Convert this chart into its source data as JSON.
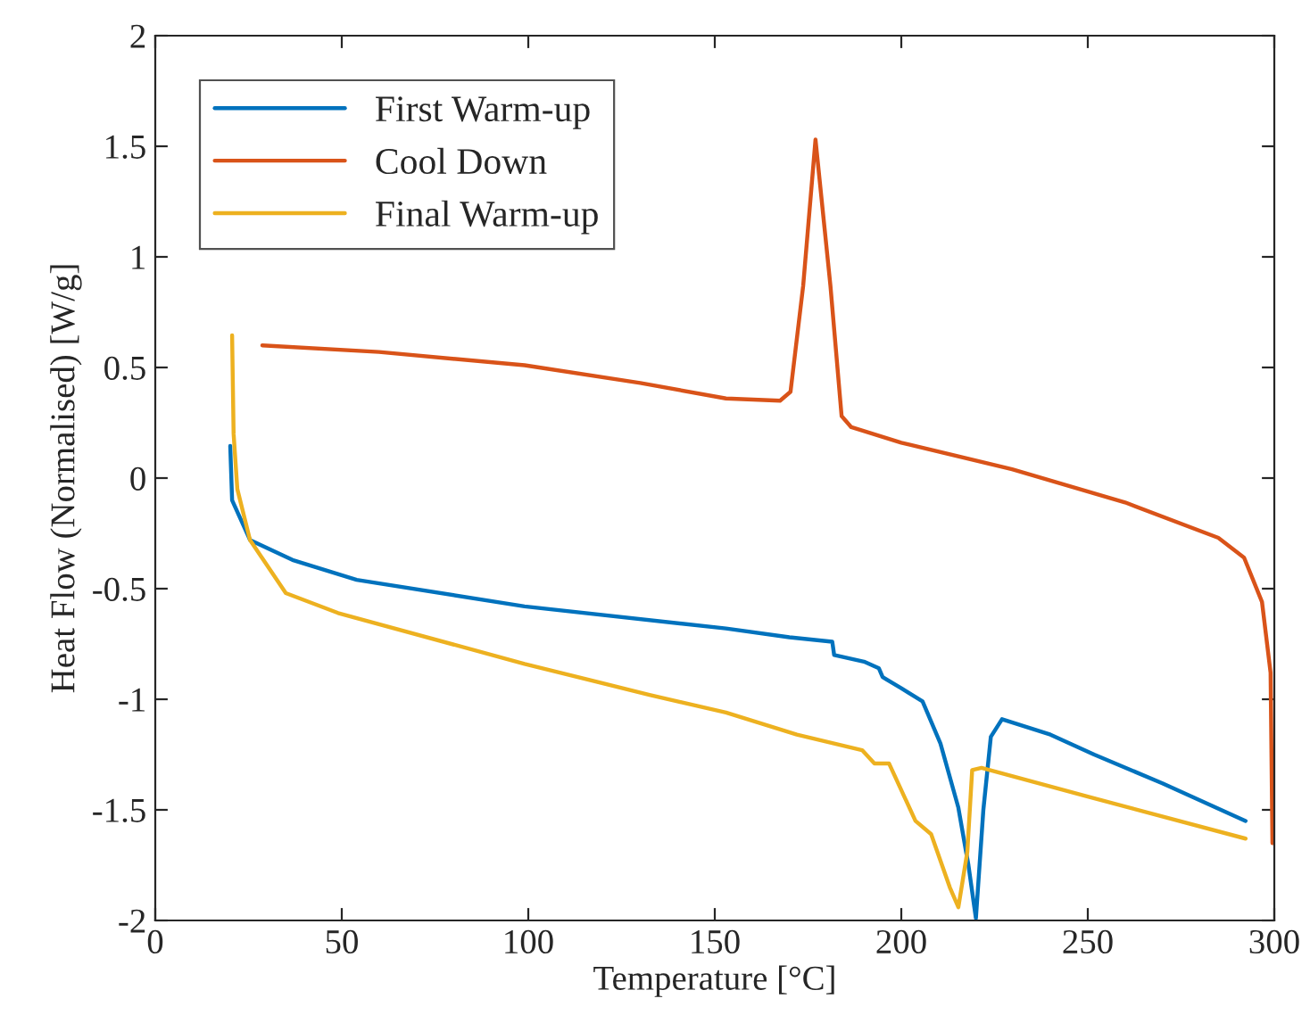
{
  "chart_data": {
    "type": "line",
    "xlabel": "Temperature [°C]",
    "ylabel": "Heat Flow (Normalised) [W/g]",
    "xlim": [
      0,
      300
    ],
    "ylim": [
      -2,
      2
    ],
    "xticks": [
      0,
      50,
      100,
      150,
      200,
      250,
      300
    ],
    "yticks": [
      -2,
      -1.5,
      -1,
      -0.5,
      0,
      0.5,
      1,
      1.5,
      2
    ],
    "grid": false,
    "legend": "top left",
    "line_style": "solid",
    "marker": "none",
    "series": [
      {
        "name": "First Warm-up",
        "color": "#0072bd",
        "x": [
          20.1,
          20.6,
          25.4,
          36.8,
          54,
          99,
          153,
          170,
          181.5,
          182,
          190,
          194,
          195,
          200,
          205.7,
          210.5,
          215.3,
          218,
          220,
          222,
          224,
          227,
          240,
          251.7,
          270,
          292.3
        ],
        "values": [
          0.145,
          -0.1,
          -0.28,
          -0.37,
          -0.46,
          -0.58,
          -0.68,
          -0.72,
          -0.74,
          -0.8,
          -0.83,
          -0.86,
          -0.9,
          -0.95,
          -1.01,
          -1.2,
          -1.49,
          -1.75,
          -1.99,
          -1.5,
          -1.17,
          -1.09,
          -1.16,
          -1.25,
          -1.38,
          -1.55
        ]
      },
      {
        "name": "Cool Down",
        "color": "#d95319",
        "x": [
          28.7,
          60,
          99,
          130,
          153,
          167.5,
          170.3,
          173.7,
          177,
          181,
          184,
          186.6,
          200,
          229.7,
          260,
          285,
          291.9,
          296.7,
          299,
          299.5
        ],
        "values": [
          0.6,
          0.57,
          0.51,
          0.43,
          0.36,
          0.35,
          0.39,
          0.87,
          1.53,
          0.87,
          0.28,
          0.23,
          0.16,
          0.04,
          -0.11,
          -0.27,
          -0.36,
          -0.56,
          -0.88,
          -1.65
        ]
      },
      {
        "name": "Final Warm-up",
        "color": "#edb120",
        "x": [
          20.6,
          21,
          22,
          25.4,
          35,
          49,
          99,
          132.5,
          153,
          172,
          189.5,
          192.8,
          196.7,
          203.8,
          208,
          213,
          215.3,
          217.7,
          219,
          221.5,
          250,
          292.3
        ],
        "values": [
          0.645,
          0.2,
          -0.05,
          -0.28,
          -0.52,
          -0.61,
          -0.84,
          -0.98,
          -1.06,
          -1.16,
          -1.23,
          -1.29,
          -1.29,
          -1.55,
          -1.61,
          -1.85,
          -1.94,
          -1.69,
          -1.32,
          -1.31,
          -1.44,
          -1.63
        ]
      }
    ]
  }
}
